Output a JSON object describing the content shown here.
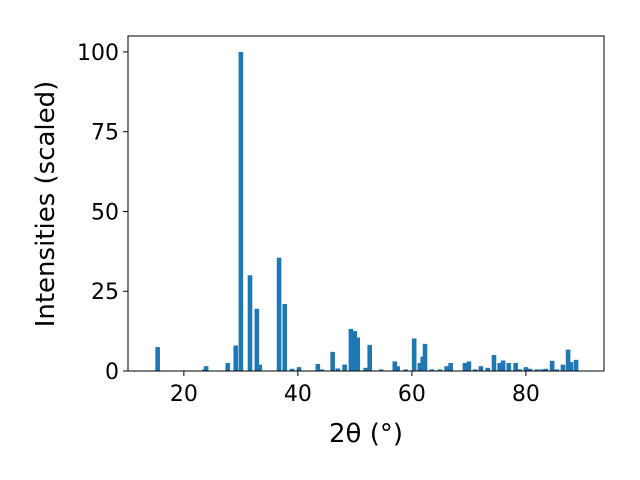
{
  "chart_data": {
    "type": "bar",
    "xlabel": "2θ (°)",
    "ylabel": "Intensities (scaled)",
    "x": [
      15.4,
      23.6,
      23.9,
      27.7,
      29.1,
      30.0,
      31.6,
      32.8,
      33.3,
      36.7,
      37.7,
      39.0,
      40.2,
      43.5,
      44.2,
      46.1,
      47.0,
      48.2,
      49.3,
      50.0,
      50.5,
      51.9,
      52.6,
      54.6,
      57.0,
      57.5,
      58.9,
      60.4,
      61.4,
      61.9,
      62.3,
      63.5,
      64.9,
      66.1,
      66.8,
      69.3,
      70.0,
      71.1,
      72.1,
      73.3,
      74.4,
      75.4,
      76.0,
      77.0,
      78.2,
      78.9,
      80.0,
      80.7,
      81.9,
      82.8,
      83.5,
      84.6,
      85.4,
      86.5,
      87.4,
      87.9,
      88.8
    ],
    "values": [
      7.5,
      0.5,
      1.5,
      2.5,
      8,
      100,
      30,
      19.5,
      2,
      35.5,
      21,
      0.7,
      1.2,
      2.2,
      0.5,
      6,
      0.8,
      2,
      13.2,
      12.5,
      10.5,
      1,
      8.2,
      0.5,
      3,
      1.5,
      0.5,
      10.2,
      2.5,
      4.5,
      8.5,
      0.5,
      0.5,
      1.5,
      2.5,
      2.5,
      3,
      0.5,
      1.5,
      1,
      5,
      2.5,
      3.3,
      2.5,
      2.5,
      0.5,
      1.2,
      0.7,
      0.5,
      0.5,
      0.7,
      3.2,
      0.5,
      2,
      6.7,
      2.8,
      3.5
    ],
    "color": "#1f77b4",
    "xlim": [
      10.2,
      93.7
    ],
    "xticks": [
      20,
      40,
      60,
      80
    ],
    "ylim": [
      0,
      105
    ],
    "yticks": [
      0,
      25,
      50,
      75,
      100
    ],
    "grid": false
  }
}
